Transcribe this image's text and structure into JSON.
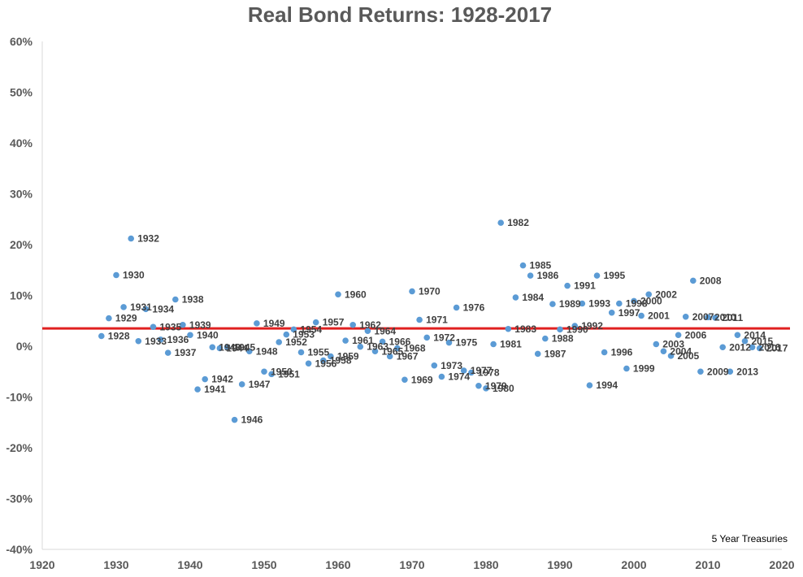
{
  "chart_data": {
    "type": "scatter",
    "title": "Real Bond Returns: 1928-2017",
    "annotation": "5 Year Treasuries",
    "xlim": [
      1920,
      2020
    ],
    "ylim": [
      -40,
      60
    ],
    "x_ticks": [
      1920,
      1930,
      1940,
      1950,
      1960,
      1970,
      1980,
      1990,
      2000,
      2010,
      2020
    ],
    "y_ticks": [
      "-40%",
      "-30%",
      "-20%",
      "-10%",
      "0%",
      "10%",
      "20%",
      "30%",
      "40%",
      "50%",
      "60%"
    ],
    "average_line": 3.5,
    "colors": {
      "points": "#5B9BD5",
      "average_line": "#E02020",
      "axis": "#D9D9D9"
    },
    "points": [
      {
        "x": 1928,
        "y": 2.0,
        "label": "1928"
      },
      {
        "x": 1929,
        "y": 5.5,
        "label": "1929"
      },
      {
        "x": 1930,
        "y": 14.0,
        "label": "1930"
      },
      {
        "x": 1931,
        "y": 7.7,
        "label": "1931"
      },
      {
        "x": 1932,
        "y": 21.2,
        "label": "1932"
      },
      {
        "x": 1933,
        "y": 1.0,
        "label": "1933"
      },
      {
        "x": 1934,
        "y": 7.3,
        "label": "1934"
      },
      {
        "x": 1935,
        "y": 3.8,
        "label": "1935"
      },
      {
        "x": 1936,
        "y": 1.3,
        "label": "1936"
      },
      {
        "x": 1937,
        "y": -1.3,
        "label": "1937"
      },
      {
        "x": 1938,
        "y": 9.2,
        "label": "1938"
      },
      {
        "x": 1939,
        "y": 4.2,
        "label": "1939"
      },
      {
        "x": 1940,
        "y": 2.2,
        "label": "1940"
      },
      {
        "x": 1941,
        "y": -8.5,
        "label": "1941"
      },
      {
        "x": 1942,
        "y": -6.5,
        "label": "1942"
      },
      {
        "x": 1943,
        "y": -0.2,
        "label": "1943"
      },
      {
        "x": 1944,
        "y": -0.4,
        "label": "1944"
      },
      {
        "x": 1945,
        "y": -0.2,
        "label": "1945"
      },
      {
        "x": 1946,
        "y": -14.5,
        "label": "1946"
      },
      {
        "x": 1947,
        "y": -7.5,
        "label": "1947"
      },
      {
        "x": 1948,
        "y": -1.0,
        "label": "1948"
      },
      {
        "x": 1949,
        "y": 4.5,
        "label": "1949"
      },
      {
        "x": 1950,
        "y": -5.0,
        "label": "1950"
      },
      {
        "x": 1951,
        "y": -5.5,
        "label": "1951"
      },
      {
        "x": 1952,
        "y": 0.8,
        "label": "1952"
      },
      {
        "x": 1953,
        "y": 2.3,
        "label": "1953"
      },
      {
        "x": 1954,
        "y": 3.3,
        "label": "1954"
      },
      {
        "x": 1955,
        "y": -1.2,
        "label": "1955"
      },
      {
        "x": 1956,
        "y": -3.4,
        "label": "1956"
      },
      {
        "x": 1957,
        "y": 4.7,
        "label": "1957"
      },
      {
        "x": 1958,
        "y": -2.8,
        "label": "1958"
      },
      {
        "x": 1959,
        "y": -2.0,
        "label": "1959"
      },
      {
        "x": 1960,
        "y": 10.2,
        "label": "1960"
      },
      {
        "x": 1961,
        "y": 1.1,
        "label": "1961"
      },
      {
        "x": 1962,
        "y": 4.2,
        "label": "1962"
      },
      {
        "x": 1963,
        "y": -0.1,
        "label": "1963"
      },
      {
        "x": 1964,
        "y": 3.0,
        "label": "1964"
      },
      {
        "x": 1965,
        "y": -1.0,
        "label": "1965"
      },
      {
        "x": 1966,
        "y": 0.9,
        "label": "1966"
      },
      {
        "x": 1967,
        "y": -2.0,
        "label": "1967"
      },
      {
        "x": 1968,
        "y": -0.4,
        "label": "1968"
      },
      {
        "x": 1969,
        "y": -6.6,
        "label": "1969"
      },
      {
        "x": 1970,
        "y": 10.8,
        "label": "1970"
      },
      {
        "x": 1971,
        "y": 5.2,
        "label": "1971"
      },
      {
        "x": 1972,
        "y": 1.7,
        "label": "1972"
      },
      {
        "x": 1973,
        "y": -3.8,
        "label": "1973"
      },
      {
        "x": 1974,
        "y": -6.0,
        "label": "1974"
      },
      {
        "x": 1975,
        "y": 0.7,
        "label": "1975"
      },
      {
        "x": 1976,
        "y": 7.6,
        "label": "1976"
      },
      {
        "x": 1977,
        "y": -4.8,
        "label": "1977"
      },
      {
        "x": 1978,
        "y": -5.2,
        "label": "1978"
      },
      {
        "x": 1979,
        "y": -7.8,
        "label": "1979"
      },
      {
        "x": 1980,
        "y": -8.3,
        "label": "1980"
      },
      {
        "x": 1981,
        "y": 0.4,
        "label": "1981"
      },
      {
        "x": 1982,
        "y": 24.3,
        "label": "1982"
      },
      {
        "x": 1983,
        "y": 3.4,
        "label": "1983"
      },
      {
        "x": 1984,
        "y": 9.6,
        "label": "1984"
      },
      {
        "x": 1985,
        "y": 15.9,
        "label": "1985"
      },
      {
        "x": 1986,
        "y": 13.9,
        "label": "1986"
      },
      {
        "x": 1987,
        "y": -1.5,
        "label": "1987"
      },
      {
        "x": 1988,
        "y": 1.5,
        "label": "1988"
      },
      {
        "x": 1989,
        "y": 8.3,
        "label": "1989"
      },
      {
        "x": 1990,
        "y": 3.3,
        "label": "1990"
      },
      {
        "x": 1991,
        "y": 11.9,
        "label": "1991"
      },
      {
        "x": 1992,
        "y": 4.0,
        "label": "1992"
      },
      {
        "x": 1993,
        "y": 8.4,
        "label": "1993"
      },
      {
        "x": 1994,
        "y": -7.7,
        "label": "1994"
      },
      {
        "x": 1995,
        "y": 13.9,
        "label": "1995"
      },
      {
        "x": 1996,
        "y": -1.2,
        "label": "1996"
      },
      {
        "x": 1997,
        "y": 6.6,
        "label": "1997"
      },
      {
        "x": 1998,
        "y": 8.4,
        "label": "1998"
      },
      {
        "x": 1999,
        "y": -4.4,
        "label": "1999"
      },
      {
        "x": 2000,
        "y": 8.9,
        "label": "2000"
      },
      {
        "x": 2001,
        "y": 6.0,
        "label": "2001"
      },
      {
        "x": 2002,
        "y": 10.2,
        "label": "2002"
      },
      {
        "x": 2003,
        "y": 0.4,
        "label": "2003"
      },
      {
        "x": 2004,
        "y": -1.0,
        "label": "2004"
      },
      {
        "x": 2005,
        "y": -1.9,
        "label": "2005"
      },
      {
        "x": 2006,
        "y": 2.2,
        "label": "2006"
      },
      {
        "x": 2007,
        "y": 5.8,
        "label": "2007"
      },
      {
        "x": 2008,
        "y": 12.9,
        "label": "2008"
      },
      {
        "x": 2009,
        "y": -5.0,
        "label": "2009"
      },
      {
        "x": 2010,
        "y": 5.7,
        "label": "2010"
      },
      {
        "x": 2011,
        "y": 5.6,
        "label": "2011"
      },
      {
        "x": 2012,
        "y": -0.2,
        "label": "2012"
      },
      {
        "x": 2013,
        "y": -5.0,
        "label": "2013"
      },
      {
        "x": 2014,
        "y": 2.2,
        "label": "2014"
      },
      {
        "x": 2015,
        "y": 1.0,
        "label": "2015"
      },
      {
        "x": 2016,
        "y": -0.2,
        "label": "2016"
      },
      {
        "x": 2017,
        "y": -0.4,
        "label": "2017"
      }
    ]
  }
}
